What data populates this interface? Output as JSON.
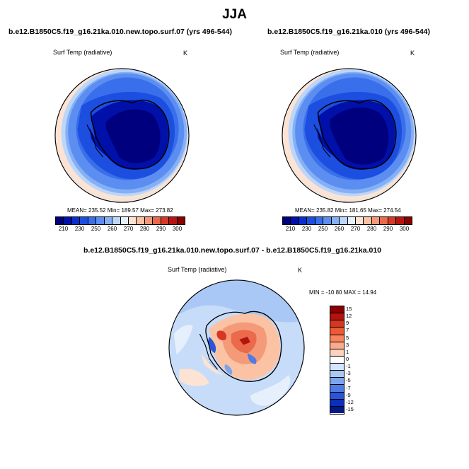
{
  "figure": {
    "title": "JJA",
    "left_panel": {
      "title": "b.e12.B1850C5.f19_g16.21ka.010.new.topo.surf.07 (yrs 496-544)",
      "variable": "Surf Temp (radiative)",
      "units": "K",
      "stats": "MEAN= 235.52  Min= 189.57  Max= 273.82"
    },
    "right_panel": {
      "title": "b.e12.B1850C5.f19_g16.21ka.010 (yrs 496-544)",
      "variable": "Surf Temp (radiative)",
      "units": "K",
      "stats": "MEAN= 235.82  Min= 181.65  Max= 274.54"
    },
    "diff_panel": {
      "title": "b.e12.B1850C5.f19_g16.21ka.010.new.topo.surf.07 - b.e12.B1850C5.f19_g16.21ka.010",
      "variable": "Surf Temp (radiative)",
      "units": "K",
      "stats": "MIN = -10.80 MAX =  14.94"
    },
    "abs_colorbar": {
      "colors": [
        "#00007f",
        "#0010a8",
        "#0a2fcc",
        "#1c4fe0",
        "#3a6fec",
        "#5b8ef0",
        "#86b0f5",
        "#bcd6fa",
        "#e6f0fc",
        "#fde3d3",
        "#fbc2a4",
        "#f59a78",
        "#ea6a4b",
        "#d63a26",
        "#b8140f",
        "#8a0000"
      ],
      "labels": [
        "210",
        "230",
        "250",
        "260",
        "270",
        "280",
        "290",
        "300"
      ]
    },
    "diff_colorbar": {
      "colors": [
        "#8a0000",
        "#b3140e",
        "#d63622",
        "#ee5a36",
        "#f7845d",
        "#fbab8a",
        "#fdd3bf",
        "#ffffff",
        "#d6e5fb",
        "#aac8f5",
        "#7ca5ee",
        "#4f7be4",
        "#2a55d8",
        "#0b2fb8",
        "#001a8a"
      ],
      "labels": [
        "15",
        "12",
        "9",
        "7",
        "5",
        "3",
        "1",
        "0",
        "-1",
        "-3",
        "-5",
        "-7",
        "-9",
        "-12",
        "-15"
      ]
    }
  }
}
